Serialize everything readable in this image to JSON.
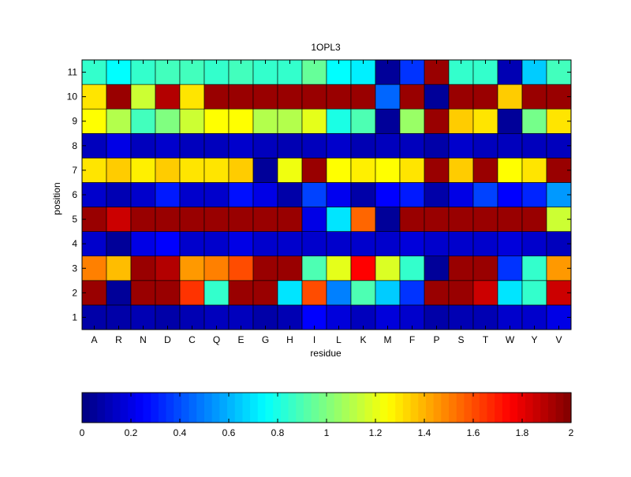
{
  "chart_data": {
    "type": "heatmap",
    "title": "1OPL3",
    "xlabel": "residue",
    "ylabel": "position",
    "x_categories": [
      "A",
      "R",
      "N",
      "D",
      "C",
      "Q",
      "E",
      "G",
      "H",
      "I",
      "L",
      "K",
      "M",
      "F",
      "P",
      "S",
      "T",
      "W",
      "Y",
      "V"
    ],
    "y_categories": [
      "1",
      "2",
      "3",
      "4",
      "5",
      "6",
      "7",
      "8",
      "9",
      "10",
      "11"
    ],
    "value_range": [
      0,
      2
    ],
    "colormap": "jet",
    "colorbar": {
      "orientation": "horizontal",
      "placement": "bottom",
      "ticks": [
        0,
        0.2,
        0.4,
        0.6,
        0.8,
        1,
        1.2,
        1.4,
        1.6,
        1.8,
        2
      ],
      "tick_labels": [
        "0",
        "0.2",
        "0.4",
        "0.6",
        "0.8",
        "1",
        "1.2",
        "1.4",
        "1.6",
        "1.8",
        "2"
      ]
    },
    "grid": false,
    "values_by_position": {
      "11": [
        0.85,
        0.75,
        0.85,
        0.88,
        0.88,
        0.85,
        0.88,
        0.85,
        0.85,
        0.95,
        0.75,
        0.72,
        0.05,
        0.35,
        1.95,
        0.85,
        0.85,
        0.1,
        0.65,
        0.88
      ],
      "10": [
        1.3,
        1.95,
        1.15,
        1.9,
        1.3,
        1.95,
        1.95,
        1.95,
        1.95,
        1.95,
        1.95,
        1.95,
        0.45,
        1.95,
        0.05,
        1.95,
        1.95,
        1.35,
        1.95,
        1.95
      ],
      "9": [
        1.25,
        1.1,
        0.88,
        1.0,
        1.15,
        1.25,
        1.25,
        1.1,
        1.1,
        1.2,
        0.8,
        0.9,
        0.05,
        1.05,
        1.95,
        1.35,
        1.3,
        0.05,
        0.98,
        1.3
      ],
      "8": [
        0.12,
        0.2,
        0.12,
        0.15,
        0.12,
        0.12,
        0.15,
        0.12,
        0.1,
        0.12,
        0.15,
        0.1,
        0.12,
        0.12,
        0.08,
        0.15,
        0.12,
        0.12,
        0.12,
        0.12
      ],
      "7": [
        1.3,
        1.35,
        1.28,
        1.35,
        1.3,
        1.3,
        1.35,
        0.05,
        1.22,
        1.95,
        1.25,
        1.28,
        1.25,
        1.3,
        1.95,
        1.35,
        1.95,
        1.25,
        1.3,
        1.95
      ],
      "6": [
        0.15,
        0.1,
        0.15,
        0.3,
        0.15,
        0.15,
        0.28,
        0.2,
        0.08,
        0.38,
        0.22,
        0.08,
        0.25,
        0.3,
        0.08,
        0.2,
        0.38,
        0.25,
        0.32,
        0.55
      ],
      "5": [
        1.95,
        1.85,
        1.95,
        1.95,
        1.95,
        1.95,
        1.95,
        1.95,
        1.95,
        0.2,
        0.7,
        1.55,
        0.05,
        1.95,
        1.95,
        1.95,
        1.95,
        1.95,
        1.95,
        1.15
      ],
      "4": [
        0.15,
        0.05,
        0.2,
        0.25,
        0.15,
        0.15,
        0.2,
        0.15,
        0.15,
        0.15,
        0.15,
        0.15,
        0.15,
        0.18,
        0.15,
        0.15,
        0.15,
        0.18,
        0.15,
        0.12
      ],
      "3": [
        1.5,
        1.38,
        1.95,
        1.9,
        1.45,
        1.5,
        1.6,
        1.95,
        1.95,
        0.9,
        1.2,
        1.75,
        1.18,
        0.85,
        0.05,
        1.95,
        1.95,
        0.35,
        0.85,
        1.45
      ],
      "2": [
        1.95,
        0.05,
        1.95,
        1.95,
        1.65,
        0.85,
        1.95,
        1.95,
        0.7,
        1.6,
        0.5,
        0.9,
        0.65,
        0.35,
        1.95,
        1.95,
        1.85,
        0.7,
        0.85,
        1.85
      ],
      "1": [
        0.08,
        0.08,
        0.1,
        0.08,
        0.1,
        0.12,
        0.12,
        0.08,
        0.1,
        0.25,
        0.18,
        0.12,
        0.18,
        0.15,
        0.08,
        0.1,
        0.1,
        0.15,
        0.15,
        0.2
      ]
    }
  }
}
